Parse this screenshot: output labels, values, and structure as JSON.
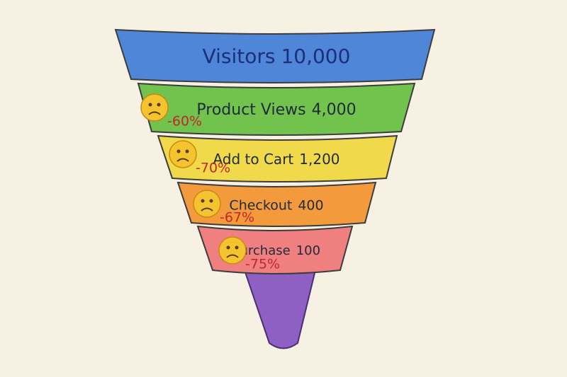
{
  "chart_data": {
    "type": "funnel",
    "categories": [
      "Visitors",
      "Product Views",
      "Add to Cart",
      "Checkout",
      "Purchase"
    ],
    "values": [
      10000,
      4000,
      1200,
      400,
      100
    ],
    "value_labels": [
      "10,000",
      "4,000",
      "1,200",
      "400",
      "100"
    ],
    "colors": [
      "#4f86d8",
      "#72c24e",
      "#f1d94c",
      "#f39a3c",
      "#f08080"
    ],
    "stem_color": "#8e60c4",
    "drops": {
      "values": [
        -60,
        -70,
        -67,
        -75
      ],
      "value_labels": [
        "-60%",
        "-70%",
        "-67%",
        "-75%"
      ],
      "color": "#c0262b"
    }
  }
}
